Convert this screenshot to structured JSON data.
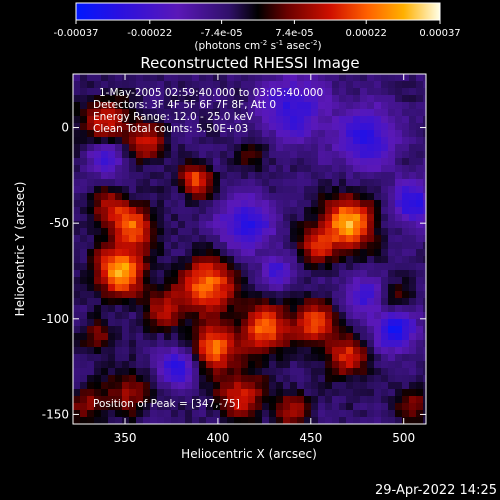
{
  "chart_data": {
    "type": "heatmap",
    "title": "Reconstructed RHESSI Image",
    "xlabel": "Heliocentric X (arcsec)",
    "ylabel": "Heliocentric Y (arcsec)",
    "xlim": [
      322,
      512
    ],
    "ylim": [
      -155,
      28
    ],
    "xticks": [
      350,
      400,
      450,
      500
    ],
    "yticks": [
      0,
      -50,
      -100,
      -150
    ],
    "colorbar": {
      "range": [
        -0.00037,
        0.00037
      ],
      "tick_labels": [
        "-0.00037",
        "-0.00022",
        "-7.4e-05",
        "7.4e-05",
        "0.00022",
        "0.00037"
      ],
      "tick_values": [
        -0.00037,
        -0.00022,
        -7.4e-05,
        7.4e-05,
        0.00022,
        0.00037
      ],
      "unit_label": "(photons cm",
      "unit_exp1": "-2",
      "unit_mid": " s",
      "unit_exp2": "-1",
      "unit_mid2": " asec",
      "unit_exp3": "-2",
      "unit_end": ")"
    },
    "annotations": {
      "time_range": "1-May-2005 02:59:40.000 to 03:05:40.000",
      "detectors": "Detectors: 3F 4F 5F 6F 7F 8F, Att 0",
      "energy": "Energy Range: 12.0 - 25.0 keV",
      "clean": "Clean     Total counts: 5.50E+03",
      "peak": "Position of Peak = [347,-75]"
    },
    "sources": [
      {
        "x": 347,
        "y": -75,
        "amp": 1.0,
        "sigma": 9
      },
      {
        "x": 355,
        "y": -52,
        "amp": 0.7,
        "sigma": 8
      },
      {
        "x": 342,
        "y": -42,
        "amp": 0.5,
        "sigma": 7
      },
      {
        "x": 340,
        "y": 2,
        "amp": 0.55,
        "sigma": 10
      },
      {
        "x": 362,
        "y": -8,
        "amp": 0.55,
        "sigma": 7
      },
      {
        "x": 388,
        "y": -28,
        "amp": 0.75,
        "sigma": 6
      },
      {
        "x": 395,
        "y": -82,
        "amp": 0.85,
        "sigma": 10
      },
      {
        "x": 372,
        "y": -95,
        "amp": 0.5,
        "sigma": 8
      },
      {
        "x": 398,
        "y": -115,
        "amp": 0.85,
        "sigma": 8
      },
      {
        "x": 425,
        "y": -105,
        "amp": 0.8,
        "sigma": 9
      },
      {
        "x": 470,
        "y": -50,
        "amp": 0.95,
        "sigma": 10
      },
      {
        "x": 452,
        "y": -62,
        "amp": 0.5,
        "sigma": 7
      },
      {
        "x": 452,
        "y": -102,
        "amp": 0.7,
        "sigma": 8
      },
      {
        "x": 470,
        "y": -120,
        "amp": 0.6,
        "sigma": 8
      },
      {
        "x": 412,
        "y": -140,
        "amp": 0.6,
        "sigma": 9
      },
      {
        "x": 352,
        "y": -138,
        "amp": 0.45,
        "sigma": 8
      },
      {
        "x": 330,
        "y": -145,
        "amp": 0.4,
        "sigma": 7
      },
      {
        "x": 335,
        "y": -110,
        "amp": 0.4,
        "sigma": 6
      },
      {
        "x": 420,
        "y": -15,
        "amp": 0.3,
        "sigma": 6
      },
      {
        "x": 495,
        "y": -90,
        "amp": 0.35,
        "sigma": 6
      },
      {
        "x": 505,
        "y": -145,
        "amp": 0.35,
        "sigma": 7
      },
      {
        "x": 440,
        "y": -148,
        "amp": 0.45,
        "sigma": 7
      }
    ],
    "negative_regions": [
      {
        "x": 340,
        "y": -15,
        "amp": -0.55,
        "sigma": 7
      },
      {
        "x": 415,
        "y": -50,
        "amp": -0.6,
        "sigma": 10
      },
      {
        "x": 440,
        "y": 10,
        "amp": -0.55,
        "sigma": 12
      },
      {
        "x": 480,
        "y": -5,
        "amp": -0.6,
        "sigma": 11
      },
      {
        "x": 495,
        "y": -105,
        "amp": -0.7,
        "sigma": 8
      },
      {
        "x": 378,
        "y": -125,
        "amp": -0.6,
        "sigma": 7
      },
      {
        "x": 432,
        "y": -75,
        "amp": -0.45,
        "sigma": 6
      },
      {
        "x": 478,
        "y": -88,
        "amp": -0.5,
        "sigma": 7
      },
      {
        "x": 505,
        "y": -40,
        "amp": -0.6,
        "sigma": 8
      }
    ]
  },
  "timestamp": "29-Apr-2022 14:25"
}
